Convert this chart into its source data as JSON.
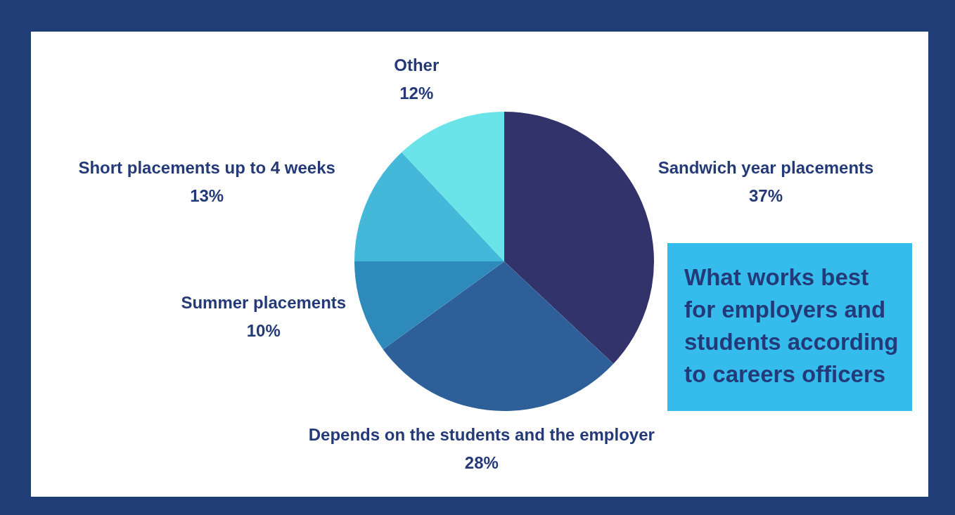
{
  "chart_data": {
    "type": "pie",
    "title": "What works best for employers and students according to careers officers",
    "categories": [
      "Sandwich year placements",
      "Depends on the students and the employer",
      "Summer placements",
      "Short placements up to 4 weeks",
      "Other"
    ],
    "values": [
      37,
      28,
      10,
      13,
      12
    ],
    "value_labels": [
      "37%",
      "28%",
      "10%",
      "13%",
      "12%"
    ],
    "colors": [
      "#31336a",
      "#2e5f98",
      "#2d8aba",
      "#43b8d8",
      "#6ae4e8"
    ],
    "legend": false
  }
}
